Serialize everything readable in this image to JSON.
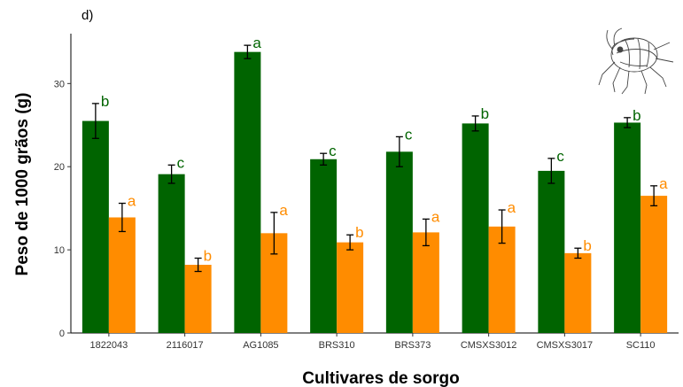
{
  "chart_data": {
    "type": "bar",
    "panel_label": "d)",
    "xlabel": "Cultivares de sorgo",
    "ylabel": "Peso de 1000 grãos (g)",
    "ylim": [
      0,
      36
    ],
    "yticks": [
      0,
      10,
      20,
      30
    ],
    "grid": false,
    "categories": [
      "1822043",
      "2116017",
      "AG1085",
      "BRS310",
      "BRS373",
      "CMSXS3012",
      "CMSXS3017",
      "SC110"
    ],
    "series": [
      {
        "color": "#006400",
        "values": [
          25.5,
          19.1,
          33.8,
          20.9,
          21.8,
          25.2,
          19.5,
          25.3
        ],
        "errors": [
          2.1,
          1.1,
          0.8,
          0.7,
          1.8,
          0.9,
          1.5,
          0.6
        ],
        "letters": [
          "b",
          "c",
          "a",
          "c",
          "c",
          "b",
          "c",
          "b"
        ]
      },
      {
        "color": "#ff8c00",
        "values": [
          13.9,
          8.2,
          12.0,
          10.9,
          12.1,
          12.8,
          9.6,
          16.5
        ],
        "errors": [
          1.7,
          0.8,
          2.5,
          0.9,
          1.6,
          2.0,
          0.6,
          1.2
        ],
        "letters": [
          "a",
          "b",
          "a",
          "b",
          "a",
          "a",
          "b",
          "a"
        ]
      }
    ],
    "inset_image": "insect-drawing"
  }
}
